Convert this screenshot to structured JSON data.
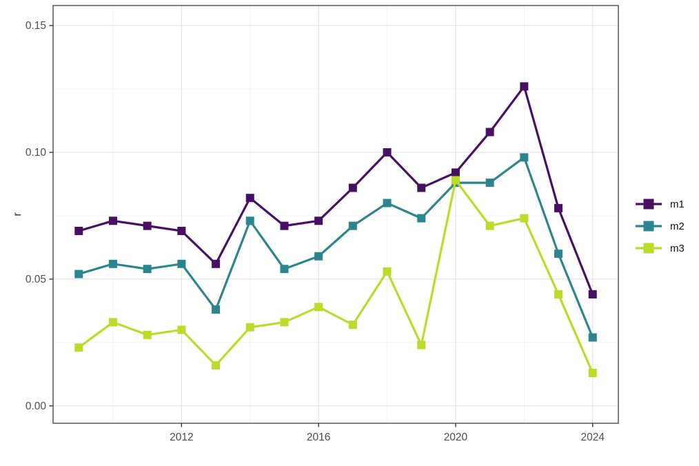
{
  "chart_data": {
    "type": "line",
    "title": "",
    "xlabel": "",
    "ylabel": "r",
    "marker": "square",
    "grid": true,
    "legend_position": "right",
    "x": [
      2009,
      2010,
      2011,
      2012,
      2013,
      2014,
      2015,
      2016,
      2017,
      2018,
      2019,
      2020,
      2021,
      2022,
      2023,
      2024
    ],
    "series": [
      {
        "name": "m1",
        "color": "#471063",
        "values": [
          0.069,
          0.073,
          0.071,
          0.069,
          0.056,
          0.082,
          0.071,
          0.073,
          0.086,
          0.1,
          0.086,
          0.092,
          0.108,
          0.126,
          0.078,
          0.044
        ]
      },
      {
        "name": "m2",
        "color": "#2C848E",
        "values": [
          0.052,
          0.056,
          0.054,
          0.056,
          0.038,
          0.073,
          0.054,
          0.059,
          0.071,
          0.08,
          0.074,
          0.088,
          0.088,
          0.098,
          0.06,
          0.027
        ]
      },
      {
        "name": "m3",
        "color": "#B9DC29",
        "values": [
          0.023,
          0.033,
          0.028,
          0.03,
          0.016,
          0.031,
          0.033,
          0.039,
          0.032,
          0.053,
          0.024,
          0.089,
          0.071,
          0.074,
          0.044,
          0.013
        ]
      }
    ],
    "x_ticks_major": [
      2012,
      2016,
      2020,
      2024
    ],
    "x_tick_labels": [
      "2012",
      "2016",
      "2020",
      "2024"
    ],
    "x_ticks_minor": [
      2010,
      2014,
      2018,
      2022
    ],
    "y_ticks_major": [
      0.0,
      0.05,
      0.1,
      0.15
    ],
    "y_tick_labels": [
      "0.00",
      "0.05",
      "0.10",
      "0.15"
    ],
    "y_ticks_minor": [
      0.025,
      0.075,
      0.125
    ],
    "xlim": [
      2008.25,
      2024.75
    ],
    "ylim": [
      -0.00685,
      0.1579
    ]
  },
  "style": {
    "panel_fill": "#ffffff",
    "panel_border_color": "#4a4a4a",
    "grid_major_color": "#e4e4e4",
    "grid_minor_color": "#f0f0f0",
    "tick_color": "#333333",
    "axis_label_color": "#4d4d4d",
    "axis_title_color": "#2b2b2b",
    "legend_text_color": "#111111"
  }
}
